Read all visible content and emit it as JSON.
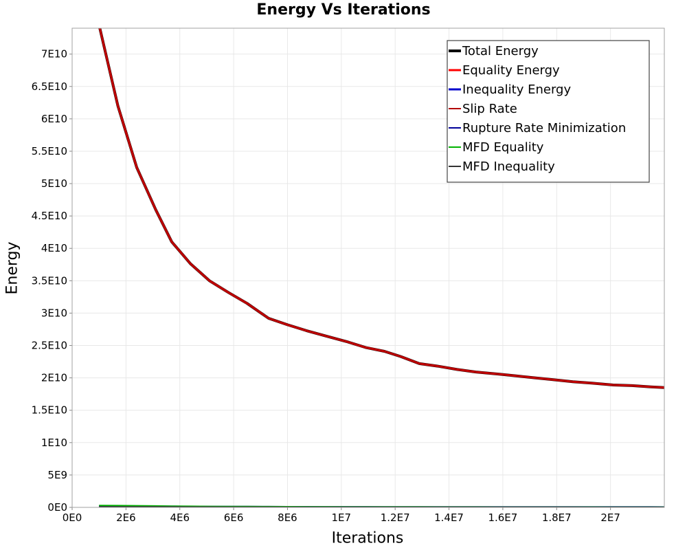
{
  "chart_data": {
    "type": "line",
    "title": "Energy Vs Iterations",
    "xlabel": "Iterations",
    "ylabel": "Energy",
    "xlim": [
      0,
      22000000
    ],
    "ylim": [
      0,
      74000000000
    ],
    "grid": true,
    "legend_position": "top-right",
    "x_ticks": [
      {
        "value": 0,
        "label": "0E0"
      },
      {
        "value": 2000000,
        "label": "2E6"
      },
      {
        "value": 4000000,
        "label": "4E6"
      },
      {
        "value": 6000000,
        "label": "6E6"
      },
      {
        "value": 8000000,
        "label": "8E6"
      },
      {
        "value": 10000000,
        "label": "1E7"
      },
      {
        "value": 12000000,
        "label": "1.2E7"
      },
      {
        "value": 14000000,
        "label": "1.4E7"
      },
      {
        "value": 16000000,
        "label": "1.6E7"
      },
      {
        "value": 18000000,
        "label": "1.8E7"
      },
      {
        "value": 20000000,
        "label": "2E7"
      }
    ],
    "y_ticks": [
      {
        "value": 0,
        "label": "0E0"
      },
      {
        "value": 5000000000,
        "label": "5E9"
      },
      {
        "value": 10000000000,
        "label": "1E10"
      },
      {
        "value": 15000000000,
        "label": "1.5E10"
      },
      {
        "value": 20000000000,
        "label": "2E10"
      },
      {
        "value": 25000000000,
        "label": "2.5E10"
      },
      {
        "value": 30000000000,
        "label": "3E10"
      },
      {
        "value": 35000000000,
        "label": "3.5E10"
      },
      {
        "value": 40000000000,
        "label": "4E10"
      },
      {
        "value": 45000000000,
        "label": "4.5E10"
      },
      {
        "value": 50000000000,
        "label": "5E10"
      },
      {
        "value": 55000000000,
        "label": "5.5E10"
      },
      {
        "value": 60000000000,
        "label": "6E10"
      },
      {
        "value": 65000000000,
        "label": "6.5E10"
      },
      {
        "value": 70000000000,
        "label": "7E10"
      }
    ],
    "x": [
      1000000,
      1700000,
      2400000,
      3100000,
      3700000,
      4400000,
      5100000,
      5800000,
      6500000,
      7300000,
      8000000,
      8700000,
      9400000,
      10200000,
      10900000,
      11600000,
      12200000,
      12900000,
      13600000,
      14300000,
      15000000,
      15800000,
      16500000,
      17200000,
      17900000,
      18600000,
      19300000,
      20100000,
      20800000,
      21500000,
      22000000
    ],
    "series": [
      {
        "name": "Total Energy",
        "color": "#000000",
        "width": 4,
        "values": [
          74500000000,
          62000000000,
          52500000000,
          46000000000,
          41000000000,
          37600000000,
          35000000000,
          33200000000,
          31500000000,
          29200000000,
          28200000000,
          27300000000,
          26500000000,
          25600000000,
          24700000000,
          24100000000,
          23300000000,
          22200000000,
          21800000000,
          21300000000,
          20900000000,
          20600000000,
          20300000000,
          20000000000,
          19700000000,
          19400000000,
          19200000000,
          18900000000,
          18800000000,
          18600000000,
          18500000000
        ]
      },
      {
        "name": "Equality Energy",
        "color": "#ff0000",
        "width": 3,
        "values": [
          74500000000,
          62000000000,
          52500000000,
          46000000000,
          41000000000,
          37600000000,
          35000000000,
          33200000000,
          31500000000,
          29200000000,
          28200000000,
          27300000000,
          26500000000,
          25600000000,
          24700000000,
          24100000000,
          23300000000,
          22200000000,
          21800000000,
          21300000000,
          20900000000,
          20600000000,
          20300000000,
          20000000000,
          19700000000,
          19400000000,
          19200000000,
          18900000000,
          18800000000,
          18600000000,
          18500000000
        ]
      },
      {
        "name": "Inequality Energy",
        "color": "#0000cc",
        "width": 3,
        "values": [
          200000000,
          180000000,
          160000000,
          140000000,
          120000000,
          100000000,
          90000000,
          80000000,
          70000000,
          60000000,
          55000000,
          50000000,
          45000000,
          40000000,
          38000000,
          35000000,
          33000000,
          30000000,
          28000000,
          26000000,
          25000000,
          24000000,
          23000000,
          22000000,
          21000000,
          20000000,
          19000000,
          18000000,
          17000000,
          16000000,
          15000000
        ]
      },
      {
        "name": "Slip Rate",
        "color": "#b30000",
        "width": 2,
        "values": [
          74500000000,
          62000000000,
          52500000000,
          46000000000,
          41000000000,
          37600000000,
          35000000000,
          33200000000,
          31500000000,
          29200000000,
          28200000000,
          27300000000,
          26500000000,
          25600000000,
          24700000000,
          24100000000,
          23300000000,
          22200000000,
          21800000000,
          21300000000,
          20900000000,
          20600000000,
          20300000000,
          20000000000,
          19700000000,
          19400000000,
          19200000000,
          18900000000,
          18800000000,
          18600000000,
          18500000000
        ]
      },
      {
        "name": "Rupture Rate Minimization",
        "color": "#000099",
        "width": 2,
        "values": [
          200000000,
          180000000,
          160000000,
          140000000,
          120000000,
          100000000,
          90000000,
          80000000,
          70000000,
          60000000,
          55000000,
          50000000,
          45000000,
          40000000,
          38000000,
          35000000,
          33000000,
          30000000,
          28000000,
          26000000,
          25000000,
          24000000,
          23000000,
          22000000,
          21000000,
          20000000,
          19000000,
          18000000,
          17000000,
          16000000,
          15000000
        ]
      },
      {
        "name": "MFD Equality",
        "color": "#00b300",
        "width": 2,
        "values": [
          300000000,
          280000000,
          250000000,
          220000000,
          190000000,
          170000000,
          150000000,
          140000000,
          130000000,
          120000000,
          110000000,
          100000000,
          95000000,
          90000000,
          85000000,
          80000000,
          75000000,
          70000000,
          65000000,
          62000000,
          60000000,
          58000000,
          56000000,
          54000000,
          52000000,
          50000000,
          48000000,
          46000000,
          44000000,
          42000000,
          40000000
        ]
      },
      {
        "name": "MFD Inequality",
        "color": "#333333",
        "width": 2,
        "values": [
          100000000,
          90000000,
          80000000,
          70000000,
          60000000,
          55000000,
          50000000,
          45000000,
          40000000,
          38000000,
          36000000,
          34000000,
          32000000,
          30000000,
          28000000,
          26000000,
          25000000,
          24000000,
          23000000,
          22000000,
          21000000,
          20000000,
          19000000,
          18000000,
          17000000,
          16000000,
          15000000,
          14000000,
          13000000,
          12000000,
          11000000
        ]
      }
    ]
  }
}
